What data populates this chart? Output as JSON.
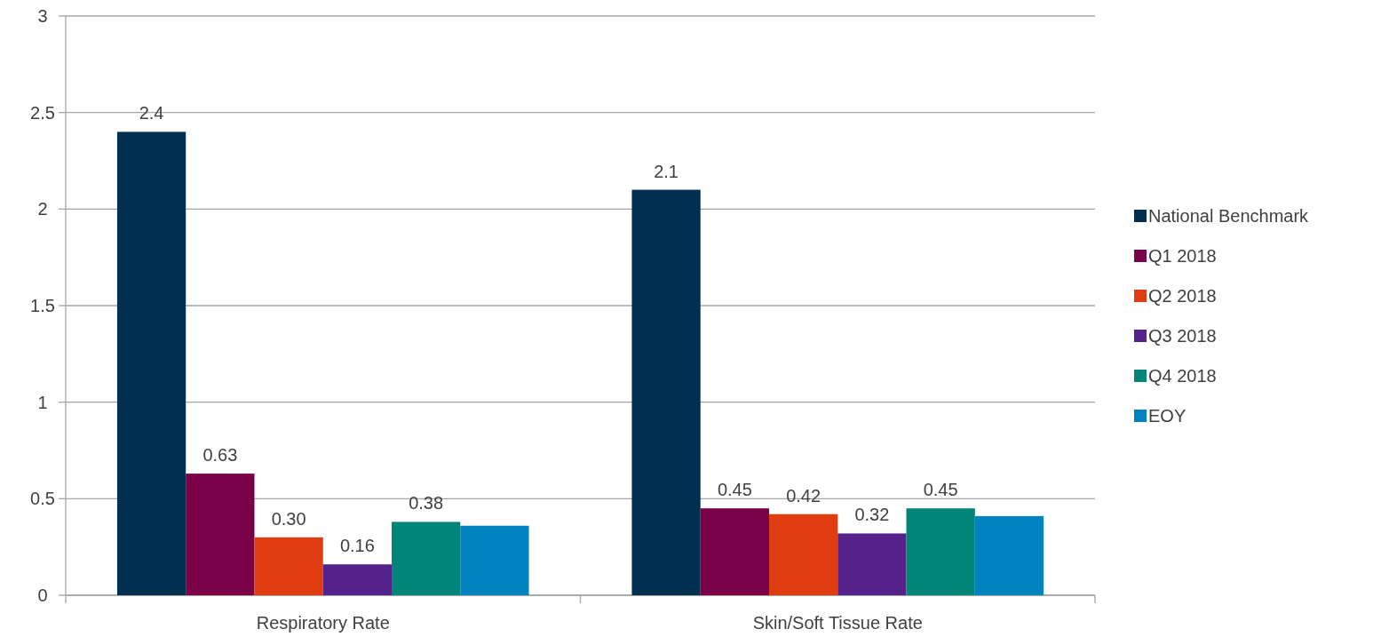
{
  "chart_data": {
    "type": "bar",
    "categories": [
      "Respiratory Rate",
      "Skin/Soft Tissue Rate"
    ],
    "series": [
      {
        "name": "National Benchmark",
        "color": "#002f50",
        "values": [
          2.4,
          2.1
        ],
        "value_labels": [
          "2.4",
          "2.1"
        ]
      },
      {
        "name": "Q1 2018",
        "color": "#7a0048",
        "values": [
          0.63,
          0.45
        ],
        "value_labels": [
          "0.63",
          "0.45"
        ]
      },
      {
        "name": "Q2 2018",
        "color": "#e03c12",
        "values": [
          0.3,
          0.42
        ],
        "value_labels": [
          "0.30",
          "0.42"
        ]
      },
      {
        "name": "Q3 2018",
        "color": "#55218b",
        "values": [
          0.16,
          0.32
        ],
        "value_labels": [
          "0.16",
          "0.32"
        ]
      },
      {
        "name": "Q4 2018",
        "color": "#008578",
        "values": [
          0.38,
          0.45
        ],
        "value_labels": [
          "0.38",
          "0.45"
        ]
      },
      {
        "name": "EOY",
        "color": "#0083be",
        "values": [
          0.36,
          0.41
        ],
        "value_labels": [
          null,
          null
        ]
      }
    ],
    "ylim": [
      0,
      3
    ],
    "yticks": [
      0,
      0.5,
      1,
      1.5,
      2,
      2.5,
      3
    ],
    "grid": "y",
    "legend": "right"
  }
}
